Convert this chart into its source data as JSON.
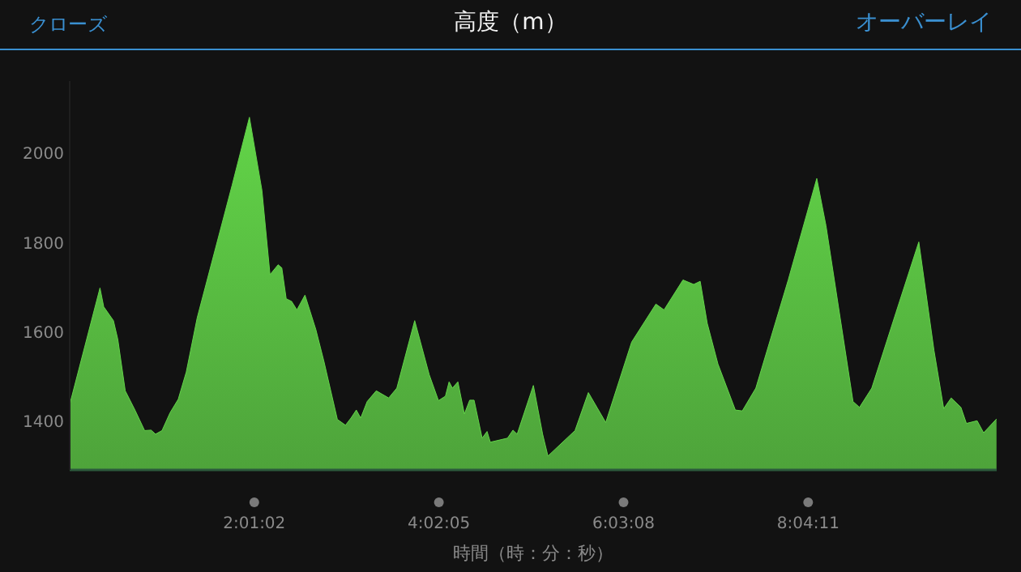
{
  "chart_data": {
    "type": "area",
    "title": "高度（m）",
    "xlabel": "時間（時：分：秒）",
    "annotations": [
      "クローズ",
      "オーバーレイ"
    ],
    "x": [
      0,
      0.331,
      0.372,
      0.478,
      0.526,
      0.607,
      0.713,
      0.819,
      0.89,
      0.938,
      1.009,
      1.097,
      1.186,
      1.274,
      1.393,
      1.775,
      1.964,
      2.101,
      2.189,
      2.278,
      2.318,
      2.366,
      2.425,
      2.483,
      2.571,
      2.69,
      2.778,
      2.925,
      3.014,
      3.074,
      3.132,
      3.18,
      3.251,
      3.35,
      3.486,
      3.575,
      3.77,
      3.929,
      4.03,
      4.106,
      4.146,
      4.182,
      4.242,
      4.313,
      4.371,
      4.419,
      4.507,
      4.561,
      4.596,
      4.784,
      4.844,
      4.89,
      5.067,
      5.168,
      5.226,
      5.522,
      5.668,
      5.858,
      6.141,
      6.406,
      6.495,
      6.702,
      6.819,
      6.89,
      6.967,
      7.084,
      7.274,
      7.35,
      7.498,
      7.852,
      8.164,
      8.265,
      8.56,
      8.631,
      8.765,
      9.031,
      9.279,
      9.445,
      9.551,
      9.633,
      9.739,
      9.799,
      9.916,
      9.987,
      10.128
    ],
    "series": [
      {
        "color": "#62d448",
        "values": [
          1436,
          1697,
          1655,
          1624,
          1582,
          1467,
          1424,
          1378,
          1379,
          1370,
          1378,
          1418,
          1448,
          1509,
          1630,
          1927,
          2079,
          1915,
          1727,
          1749,
          1742,
          1673,
          1667,
          1648,
          1681,
          1604,
          1533,
          1403,
          1390,
          1406,
          1424,
          1406,
          1443,
          1467,
          1451,
          1473,
          1624,
          1503,
          1445,
          1455,
          1487,
          1473,
          1487,
          1415,
          1446,
          1446,
          1361,
          1376,
          1352,
          1361,
          1379,
          1370,
          1479,
          1370,
          1321,
          1378,
          1463,
          1396,
          1576,
          1661,
          1648,
          1715,
          1705,
          1712,
          1618,
          1527,
          1424,
          1422,
          1473,
          1715,
          1942,
          1836,
          1443,
          1430,
          1473,
          1643,
          1800,
          1557,
          1427,
          1451,
          1430,
          1394,
          1400,
          1373,
          1404
        ]
      }
    ],
    "xlim": [
      0,
      10.13
    ],
    "xticks": [
      {
        "value": 2.01722,
        "label": "2:01:02"
      },
      {
        "value": 4.03472,
        "label": "4:02:05"
      },
      {
        "value": 6.05222,
        "label": "6:03:08"
      },
      {
        "value": 8.06972,
        "label": "8:04:11"
      }
    ],
    "ylim": [
      1290,
      2160
    ],
    "yticks": [
      1400,
      1600,
      1800,
      2000
    ],
    "grid": false,
    "legend": false
  }
}
